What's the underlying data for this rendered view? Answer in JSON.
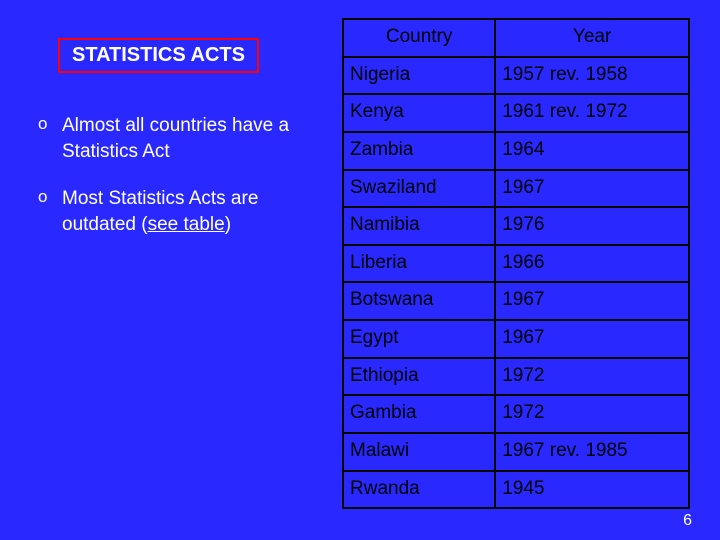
{
  "title": "STATISTICS ACTS",
  "bullets": [
    {
      "text_a": "Almost all countries have a Statistics Act",
      "underlined": ""
    },
    {
      "text_a": "Most Statistics Acts are outdated (",
      "underlined": "see table",
      "text_b": ")"
    }
  ],
  "table": {
    "headers": {
      "col1": "Country",
      "col2": "Year"
    },
    "rows": [
      {
        "country": "Nigeria",
        "year": "1957 rev. 1958"
      },
      {
        "country": "Kenya",
        "year": "1961 rev. 1972"
      },
      {
        "country": "Zambia",
        "year": "1964"
      },
      {
        "country": "Swaziland",
        "year": "1967"
      },
      {
        "country": "Namibia",
        "year": "1976"
      },
      {
        "country": "Liberia",
        "year": "1966"
      },
      {
        "country": "Botswana",
        "year": "1967"
      },
      {
        "country": "Egypt",
        "year": "1967"
      },
      {
        "country": "Ethiopia",
        "year": "1972"
      },
      {
        "country": "Gambia",
        "year": "1972"
      },
      {
        "country": "Malawi",
        "year": "1967 rev. 1985"
      },
      {
        "country": "Rwanda",
        "year": "1945"
      }
    ]
  },
  "page_number": "6",
  "colors": {
    "background": "#2929ff",
    "title_border": "#ff0000",
    "text_light": "#ffffff",
    "table_border": "#000000"
  }
}
